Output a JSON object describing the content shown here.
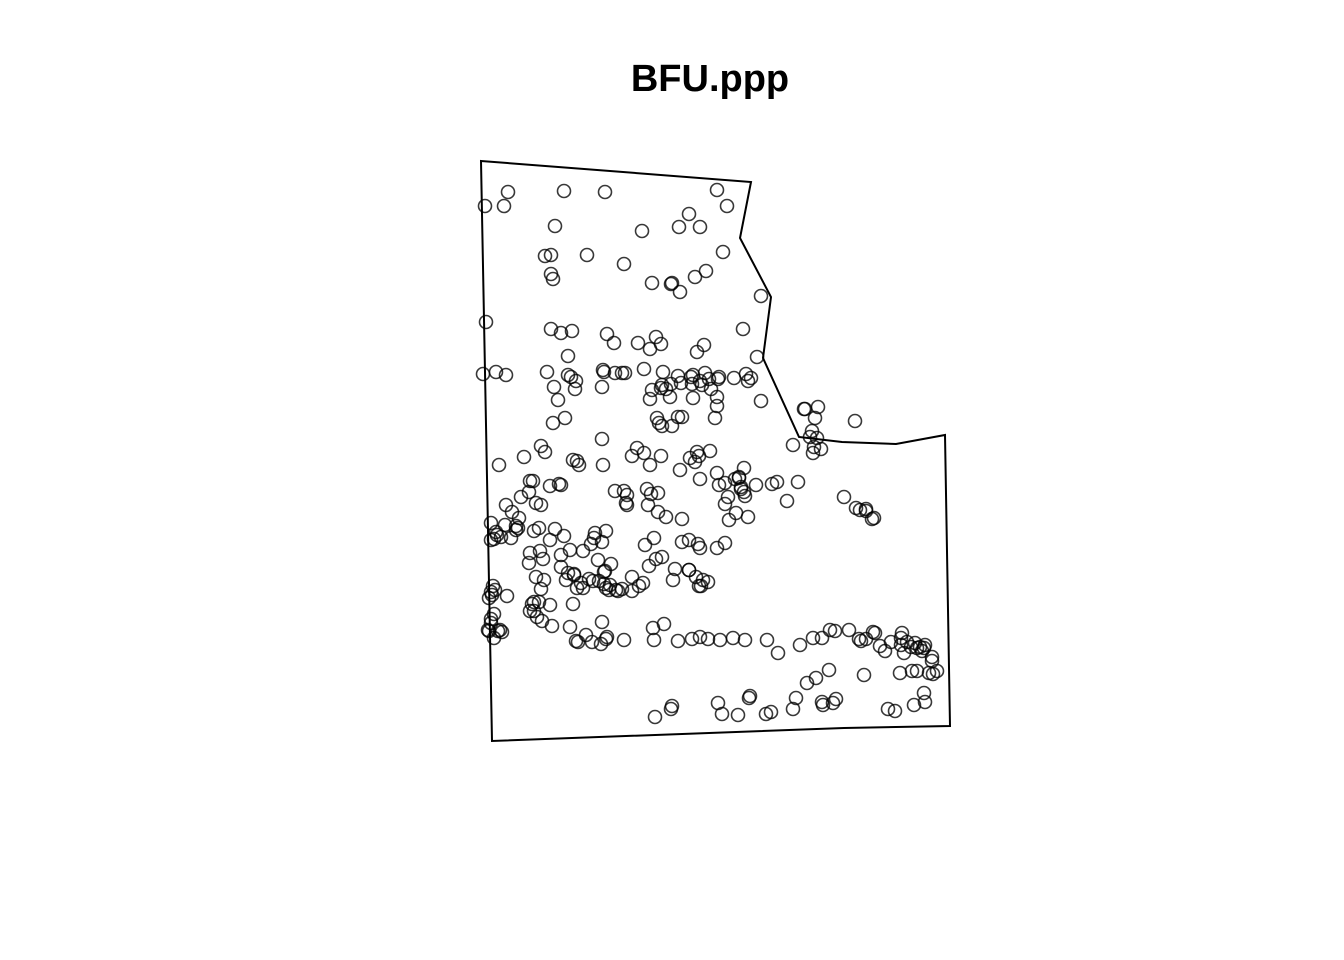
{
  "chart_data": {
    "type": "scatter",
    "title": "BFU.ppp",
    "xlabel": "",
    "ylabel": "",
    "xlim": [
      0,
      460
    ],
    "ylim": [
      0,
      580
    ],
    "window_polygon": [
      [
        0,
        580
      ],
      [
        270,
        559
      ],
      [
        259,
        503
      ],
      [
        290,
        444
      ],
      [
        282,
        383
      ],
      [
        318,
        304
      ],
      [
        361,
        299
      ],
      [
        415,
        297
      ],
      [
        464,
        306
      ],
      [
        469,
        15
      ],
      [
        363,
        13
      ],
      [
        11,
        0
      ]
    ],
    "points": [
      [
        27,
        549
      ],
      [
        83,
        550
      ],
      [
        124,
        549
      ],
      [
        4,
        535
      ],
      [
        23,
        535
      ],
      [
        236,
        551
      ],
      [
        246,
        535
      ],
      [
        208,
        527
      ],
      [
        219,
        514
      ],
      [
        198,
        514
      ],
      [
        74,
        515
      ],
      [
        161,
        510
      ],
      [
        242,
        489
      ],
      [
        64,
        485
      ],
      [
        70,
        486
      ],
      [
        106,
        486
      ],
      [
        143,
        477
      ],
      [
        70,
        467
      ],
      [
        72,
        462
      ],
      [
        171,
        458
      ],
      [
        214,
        464
      ],
      [
        225,
        470
      ],
      [
        191,
        458
      ],
      [
        190,
        457
      ],
      [
        199,
        449
      ],
      [
        5,
        419
      ],
      [
        70,
        412
      ],
      [
        80,
        408
      ],
      [
        91,
        410
      ],
      [
        126,
        407
      ],
      [
        280,
        445
      ],
      [
        262,
        412
      ],
      [
        133,
        398
      ],
      [
        157,
        398
      ],
      [
        175,
        404
      ],
      [
        180,
        397
      ],
      [
        169,
        392
      ],
      [
        223,
        396
      ],
      [
        216,
        389
      ],
      [
        276,
        384
      ],
      [
        87,
        385
      ],
      [
        2,
        367
      ],
      [
        15,
        369
      ],
      [
        25,
        366
      ],
      [
        66,
        369
      ],
      [
        87,
        366
      ],
      [
        90,
        364
      ],
      [
        95,
        360
      ],
      [
        122,
        371
      ],
      [
        123,
        369
      ],
      [
        134,
        368
      ],
      [
        144,
        368
      ],
      [
        141,
        368
      ],
      [
        163,
        372
      ],
      [
        182,
        369
      ],
      [
        197,
        365
      ],
      [
        210,
        364
      ],
      [
        212,
        366
      ],
      [
        224,
        368
      ],
      [
        228,
        362
      ],
      [
        238,
        364
      ],
      [
        237,
        362
      ],
      [
        253,
        363
      ],
      [
        265,
        367
      ],
      [
        267,
        360
      ],
      [
        270,
        363
      ],
      [
        73,
        354
      ],
      [
        94,
        352
      ],
      [
        121,
        354
      ],
      [
        171,
        351
      ],
      [
        181,
        356
      ],
      [
        180,
        353
      ],
      [
        185,
        352
      ],
      [
        190,
        357
      ],
      [
        200,
        358
      ],
      [
        211,
        357
      ],
      [
        219,
        360
      ],
      [
        221,
        356
      ],
      [
        230,
        352
      ],
      [
        236,
        344
      ],
      [
        280,
        340
      ],
      [
        77,
        341
      ],
      [
        169,
        342
      ],
      [
        189,
        344
      ],
      [
        212,
        343
      ],
      [
        236,
        335
      ],
      [
        84,
        323
      ],
      [
        72,
        318
      ],
      [
        176,
        323
      ],
      [
        178,
        318
      ],
      [
        197,
        324
      ],
      [
        201,
        324
      ],
      [
        181,
        315
      ],
      [
        191,
        315
      ],
      [
        121,
        302
      ],
      [
        234,
        323
      ],
      [
        323,
        332
      ],
      [
        324,
        332
      ],
      [
        337,
        334
      ],
      [
        374,
        320
      ],
      [
        334,
        323
      ],
      [
        331,
        310
      ],
      [
        329,
        304
      ],
      [
        336,
        303
      ],
      [
        312,
        296
      ],
      [
        333,
        294
      ],
      [
        229,
        290
      ],
      [
        216,
        289
      ],
      [
        209,
        283
      ],
      [
        218,
        285
      ],
      [
        180,
        285
      ],
      [
        151,
        285
      ],
      [
        156,
        293
      ],
      [
        163,
        288
      ],
      [
        60,
        295
      ],
      [
        64,
        289
      ],
      [
        43,
        284
      ],
      [
        18,
        276
      ],
      [
        92,
        281
      ],
      [
        96,
        280
      ],
      [
        122,
        276
      ],
      [
        98,
        276
      ],
      [
        214,
        279
      ],
      [
        332,
        288
      ],
      [
        340,
        292
      ],
      [
        236,
        268
      ],
      [
        219,
        262
      ],
      [
        169,
        276
      ],
      [
        199,
        271
      ],
      [
        263,
        273
      ],
      [
        258,
        263
      ],
      [
        258,
        264
      ],
      [
        254,
        262
      ],
      [
        244,
        258
      ],
      [
        238,
        256
      ],
      [
        260,
        254
      ],
      [
        275,
        256
      ],
      [
        291,
        257
      ],
      [
        296,
        259
      ],
      [
        317,
        259
      ],
      [
        49,
        260
      ],
      [
        52,
        260
      ],
      [
        69,
        255
      ],
      [
        78,
        257
      ],
      [
        80,
        256
      ],
      [
        40,
        244
      ],
      [
        25,
        236
      ],
      [
        48,
        249
      ],
      [
        55,
        238
      ],
      [
        60,
        236
      ],
      [
        134,
        250
      ],
      [
        146,
        246
      ],
      [
        143,
        250
      ],
      [
        166,
        252
      ],
      [
        177,
        248
      ],
      [
        170,
        247
      ],
      [
        145,
        238
      ],
      [
        146,
        236
      ],
      [
        167,
        236
      ],
      [
        177,
        229
      ],
      [
        185,
        224
      ],
      [
        201,
        222
      ],
      [
        247,
        244
      ],
      [
        264,
        245
      ],
      [
        263,
        249
      ],
      [
        260,
        252
      ],
      [
        244,
        237
      ],
      [
        248,
        221
      ],
      [
        255,
        228
      ],
      [
        267,
        224
      ],
      [
        306,
        240
      ],
      [
        363,
        244
      ],
      [
        385,
        232
      ],
      [
        385,
        230
      ],
      [
        379,
        231
      ],
      [
        375,
        233
      ],
      [
        393,
        223
      ],
      [
        391,
        222
      ],
      [
        10,
        218
      ],
      [
        24,
        216
      ],
      [
        16,
        206
      ],
      [
        13,
        202
      ],
      [
        10,
        201
      ],
      [
        15,
        209
      ],
      [
        20,
        204
      ],
      [
        35,
        215
      ],
      [
        35,
        211
      ],
      [
        53,
        210
      ],
      [
        31,
        229
      ],
      [
        38,
        223
      ],
      [
        37,
        213
      ],
      [
        30,
        203
      ],
      [
        58,
        213
      ],
      [
        74,
        212
      ],
      [
        69,
        201
      ],
      [
        83,
        205
      ],
      [
        114,
        208
      ],
      [
        125,
        210
      ],
      [
        113,
        203
      ],
      [
        121,
        199
      ],
      [
        110,
        197
      ],
      [
        173,
        203
      ],
      [
        164,
        196
      ],
      [
        217,
        197
      ],
      [
        208,
        201
      ],
      [
        201,
        199
      ],
      [
        219,
        193
      ],
      [
        236,
        193
      ],
      [
        244,
        198
      ],
      [
        49,
        188
      ],
      [
        59,
        190
      ],
      [
        48,
        178
      ],
      [
        62,
        182
      ],
      [
        80,
        186
      ],
      [
        89,
        191
      ],
      [
        102,
        190
      ],
      [
        117,
        181
      ],
      [
        80,
        174
      ],
      [
        87,
        168
      ],
      [
        93,
        167
      ],
      [
        124,
        170
      ],
      [
        130,
        177
      ],
      [
        123,
        169
      ],
      [
        151,
        164
      ],
      [
        168,
        175
      ],
      [
        175,
        182
      ],
      [
        181,
        184
      ],
      [
        194,
        172
      ],
      [
        192,
        161
      ],
      [
        208,
        171
      ],
      [
        215,
        164
      ],
      [
        220,
        155
      ],
      [
        218,
        155
      ],
      [
        208,
        171
      ],
      [
        222,
        161
      ],
      [
        227,
        159
      ],
      [
        85,
        161
      ],
      [
        93,
        166
      ],
      [
        102,
        153
      ],
      [
        108,
        162
      ],
      [
        100,
        158
      ],
      [
        96,
        153
      ],
      [
        112,
        160
      ],
      [
        118,
        160
      ],
      [
        128,
        151
      ],
      [
        123,
        157
      ],
      [
        125,
        153
      ],
      [
        137,
        150
      ],
      [
        151,
        150
      ],
      [
        158,
        155
      ],
      [
        162,
        158
      ],
      [
        129,
        156
      ],
      [
        141,
        152
      ],
      [
        135,
        151
      ],
      [
        55,
        164
      ],
      [
        63,
        161
      ],
      [
        60,
        152
      ],
      [
        92,
        137
      ],
      [
        69,
        136
      ],
      [
        58,
        139
      ],
      [
        53,
        139
      ],
      [
        51,
        137
      ],
      [
        53,
        130
      ],
      [
        49,
        130
      ],
      [
        12,
        155
      ],
      [
        10,
        149
      ],
      [
        14,
        151
      ],
      [
        26,
        145
      ],
      [
        11,
        146
      ],
      [
        8,
        143
      ],
      [
        13,
        127
      ],
      [
        10,
        118
      ],
      [
        10,
        122
      ],
      [
        7,
        111
      ],
      [
        8,
        110
      ],
      [
        17,
        110
      ],
      [
        19,
        111
      ],
      [
        13,
        103
      ],
      [
        21,
        109
      ],
      [
        61,
        120
      ],
      [
        71,
        115
      ],
      [
        56,
        124
      ],
      [
        89,
        114
      ],
      [
        95,
        100
      ],
      [
        121,
        119
      ],
      [
        97,
        99
      ],
      [
        105,
        106
      ],
      [
        111,
        99
      ],
      [
        125,
        102
      ],
      [
        126,
        104
      ],
      [
        120,
        97
      ],
      [
        172,
        113
      ],
      [
        183,
        117
      ],
      [
        173,
        101
      ],
      [
        143,
        101
      ],
      [
        197,
        100
      ],
      [
        219,
        104
      ],
      [
        211,
        102
      ],
      [
        227,
        102
      ],
      [
        239,
        101
      ],
      [
        252,
        103
      ],
      [
        264,
        101
      ],
      [
        286,
        101
      ],
      [
        297,
        88
      ],
      [
        319,
        96
      ],
      [
        332,
        103
      ],
      [
        341,
        103
      ],
      [
        349,
        111
      ],
      [
        354,
        110
      ],
      [
        368,
        111
      ],
      [
        378,
        102
      ],
      [
        380,
        100
      ],
      [
        385,
        102
      ],
      [
        392,
        109
      ],
      [
        394,
        108
      ],
      [
        399,
        95
      ],
      [
        404,
        90
      ],
      [
        420,
        96
      ],
      [
        426,
        99
      ],
      [
        423,
        88
      ],
      [
        430,
        94
      ],
      [
        436,
        93
      ],
      [
        419,
        68
      ],
      [
        431,
        70
      ],
      [
        436,
        70
      ],
      [
        383,
        66
      ],
      [
        348,
        71
      ],
      [
        335,
        63
      ],
      [
        326,
        58
      ],
      [
        315,
        43
      ],
      [
        269,
        45
      ],
      [
        268,
        43
      ],
      [
        237,
        38
      ],
      [
        191,
        35
      ],
      [
        174,
        24
      ],
      [
        190,
        32
      ],
      [
        241,
        27
      ],
      [
        257,
        26
      ],
      [
        290,
        29
      ],
      [
        285,
        27
      ],
      [
        312,
        32
      ],
      [
        341,
        39
      ],
      [
        342,
        36
      ],
      [
        355,
        42
      ],
      [
        352,
        38
      ],
      [
        407,
        32
      ],
      [
        414,
        30
      ],
      [
        433,
        36
      ],
      [
        444,
        39
      ],
      [
        443,
        48
      ],
      [
        448,
        68
      ],
      [
        452,
        67
      ],
      [
        451,
        80
      ],
      [
        456,
        70
      ],
      [
        451,
        84
      ],
      [
        443,
        93
      ],
      [
        441,
        90
      ],
      [
        434,
        98
      ],
      [
        439,
        94
      ],
      [
        444,
        96
      ],
      [
        410,
        99
      ],
      [
        420,
        103
      ],
      [
        421,
        108
      ]
    ]
  }
}
